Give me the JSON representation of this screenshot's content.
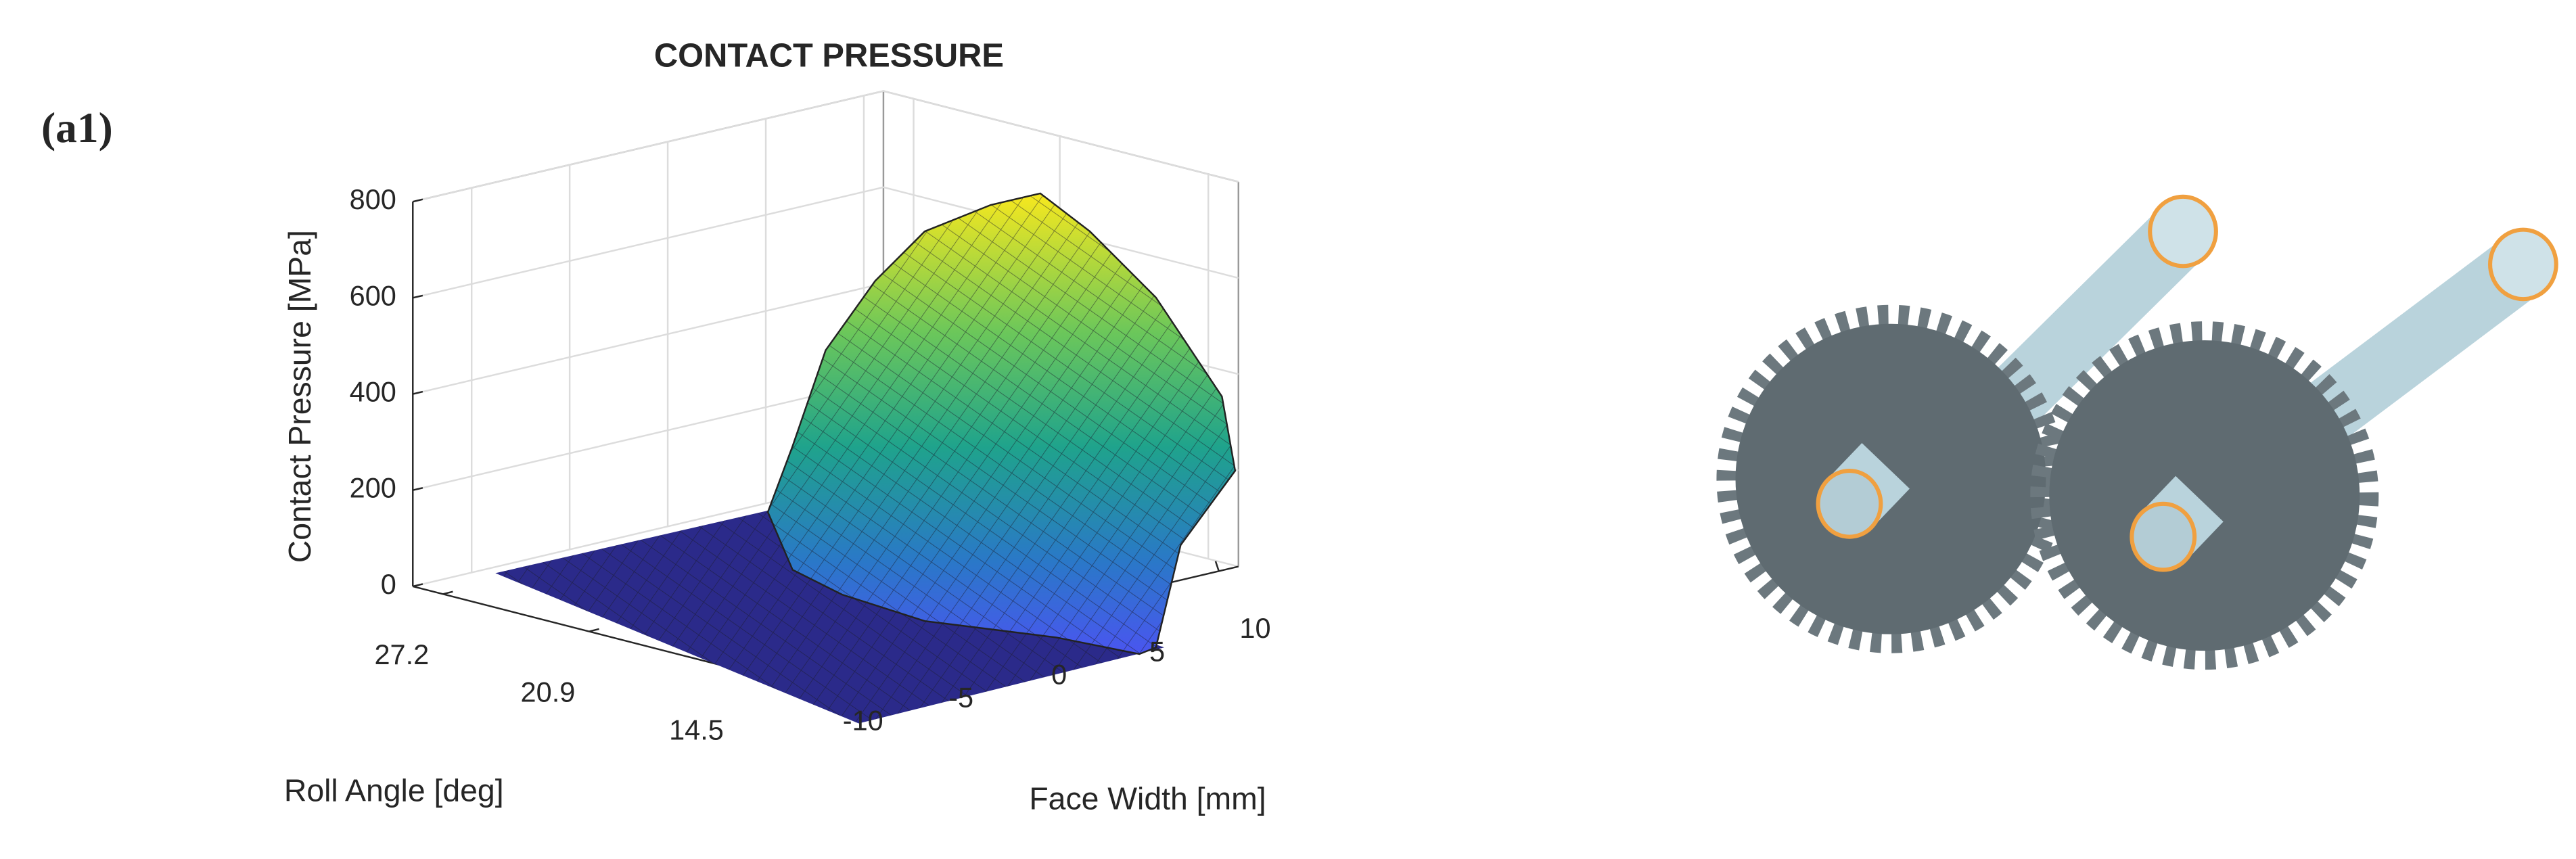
{
  "figure_label": "(a1)",
  "chart_data": {
    "type": "surface",
    "title": "CONTACT PRESSURE",
    "xlabel": "Face Width [mm]",
    "ylabel": "Roll Angle [deg]",
    "zlabel": "Contact Pressure [MPa]",
    "xlim": [
      -13,
      11
    ],
    "xticks": [
      -10,
      -5,
      0,
      5,
      10
    ],
    "ylim": [
      28.5,
      13.2
    ],
    "yticks": [
      27.2,
      20.9,
      14.5
    ],
    "zlim": [
      0,
      800
    ],
    "zticks": [
      0,
      200,
      400,
      600,
      800
    ],
    "grid": true
  }
}
